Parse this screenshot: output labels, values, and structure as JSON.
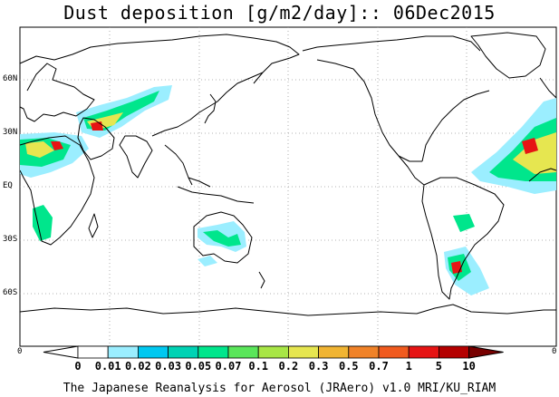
{
  "title": "Dust deposition [g/m2/day]:: 06Dec2015",
  "latitude_labels": [
    "60N",
    "30N",
    "EQ",
    "30S",
    "60S"
  ],
  "corner_labels": {
    "left": "0",
    "right": "0"
  },
  "colorbar": {
    "labels": [
      "0",
      "0.01",
      "0.02",
      "0.03",
      "0.05",
      "0.07",
      "0.1",
      "0.2",
      "0.3",
      "0.5",
      "0.7",
      "1",
      "5",
      "10"
    ],
    "colors": [
      "#ffffff",
      "#ffffff",
      "#9beeff",
      "#00c8f0",
      "#00d2b4",
      "#00e68c",
      "#5ae65a",
      "#a8e646",
      "#e6e650",
      "#f0b432",
      "#f08228",
      "#f05a1e",
      "#e61414",
      "#b40000",
      "#780000"
    ]
  },
  "plume_colors": {
    "low": "#9beeff",
    "mid": "#00e68c",
    "high": "#e6e650",
    "peak": "#e61414"
  },
  "credit": "The Japanese Reanalysis for Aerosol (JRAero) v1.0 MRI/KU_RIAM"
}
